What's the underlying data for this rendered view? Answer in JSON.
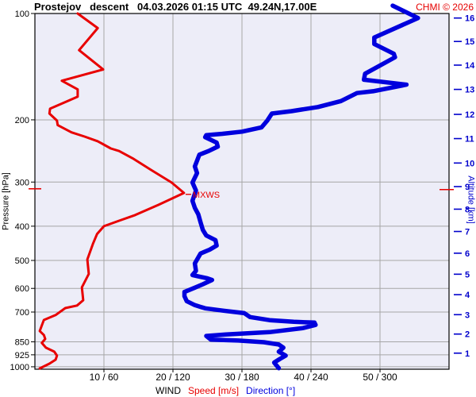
{
  "header": {
    "title": "Prostejov   descent   04.03.2026 01:15 UTC  49.24N,17.00E",
    "copyright": "CHMI © 2026"
  },
  "legend": {
    "wind": "WIND",
    "speed": "Speed [m/s]",
    "direction": "Direction [°]"
  },
  "colors": {
    "speed_curve": "#e80000",
    "direction_curve": "#0000dd",
    "altitude_text": "#0000cc",
    "grid": "#a6a6a6",
    "plot_background": "#ededf8",
    "axis": "#000000",
    "copyright_text": "#e60000"
  },
  "chart_data": {
    "type": "line",
    "title": "Prostejov descent 04.03.2026 01:15 UTC 49.24N,17.00E",
    "y_axis_left": {
      "label": "Pressure [hPa]",
      "scale": "log",
      "range": [
        100,
        1016
      ],
      "ticks": [
        100,
        200,
        300,
        400,
        500,
        600,
        700,
        850,
        925,
        1000
      ]
    },
    "y_axis_right": {
      "label": "Altitude [km]",
      "ticks": [
        {
          "km": 16,
          "p": 103
        },
        {
          "km": 15,
          "p": 120
        },
        {
          "km": 14,
          "p": 140
        },
        {
          "km": 13,
          "p": 164
        },
        {
          "km": 12,
          "p": 193
        },
        {
          "km": 11,
          "p": 226
        },
        {
          "km": 10,
          "p": 265
        },
        {
          "km": 9,
          "p": 309
        },
        {
          "km": 8,
          "p": 358
        },
        {
          "km": 7,
          "p": 414
        },
        {
          "km": 6,
          "p": 477
        },
        {
          "km": 5,
          "p": 547
        },
        {
          "km": 4,
          "p": 625
        },
        {
          "km": 3,
          "p": 712
        },
        {
          "km": 2,
          "p": 808
        },
        {
          "km": 1,
          "p": 915
        }
      ]
    },
    "x_axis": {
      "label": "WIND  Speed [m/s]  Direction [°]",
      "speed_range": [
        0,
        60
      ],
      "direction_range": [
        0,
        360
      ],
      "ticks": [
        {
          "speed": 10,
          "dir": 60,
          "label": "10 / 60"
        },
        {
          "speed": 20,
          "dir": 120,
          "label": "20 / 120"
        },
        {
          "speed": 30,
          "dir": 180,
          "label": "30 / 180"
        },
        {
          "speed": 40,
          "dir": 240,
          "label": "40 / 240"
        },
        {
          "speed": 50,
          "dir": 300,
          "label": "50 / 300"
        }
      ]
    },
    "annotations": {
      "mxws": {
        "label": "MXWS",
        "pressure": 320,
        "speed": 21.6
      }
    },
    "series": [
      {
        "name": "Speed [m/s]",
        "unit": "m/s",
        "color": "#e80000",
        "width": 3,
        "points_value_pressure": [
          [
            0.7,
            1011
          ],
          [
            2.1,
            980
          ],
          [
            3.0,
            955
          ],
          [
            3.2,
            930
          ],
          [
            2.8,
            906
          ],
          [
            1.6,
            883
          ],
          [
            1.0,
            856
          ],
          [
            1.5,
            834
          ],
          [
            1.3,
            813
          ],
          [
            0.7,
            792
          ],
          [
            1.0,
            764
          ],
          [
            1.3,
            737
          ],
          [
            3.0,
            714
          ],
          [
            4.4,
            682
          ],
          [
            6.1,
            671
          ],
          [
            7.0,
            648
          ],
          [
            6.8,
            596
          ],
          [
            7.8,
            546
          ],
          [
            7.6,
            497
          ],
          [
            8.4,
            449
          ],
          [
            9.0,
            421
          ],
          [
            10.0,
            400
          ],
          [
            12.2,
            386
          ],
          [
            14.5,
            372
          ],
          [
            15.2,
            367
          ],
          [
            17.9,
            348
          ],
          [
            21.6,
            322
          ],
          [
            19.8,
            301
          ],
          [
            16.8,
            277
          ],
          [
            14.3,
            258
          ],
          [
            12.2,
            245
          ],
          [
            11.0,
            241
          ],
          [
            9.1,
            230
          ],
          [
            7.2,
            223
          ],
          [
            5.3,
            217
          ],
          [
            3.3,
            207
          ],
          [
            3.2,
            201
          ],
          [
            2.1,
            192
          ],
          [
            2.2,
            186
          ],
          [
            6.2,
            172
          ],
          [
            6.2,
            164
          ],
          [
            3.9,
            155
          ],
          [
            9.9,
            144
          ],
          [
            6.4,
            127
          ],
          [
            9.1,
            110
          ],
          [
            6.2,
            100
          ]
        ]
      },
      {
        "name": "Direction [°]",
        "unit": "°",
        "color": "#0000dd",
        "width": 5.5,
        "points_value_pressure": [
          [
            212,
            1009
          ],
          [
            208,
            973
          ],
          [
            213,
            950
          ],
          [
            218,
            930
          ],
          [
            212,
            906
          ],
          [
            216,
            883
          ],
          [
            212,
            865
          ],
          [
            199,
            852
          ],
          [
            177,
            843
          ],
          [
            153,
            838
          ],
          [
            149,
            818
          ],
          [
            166,
            810
          ],
          [
            204,
            798
          ],
          [
            233,
            777
          ],
          [
            244,
            761
          ],
          [
            243,
            750
          ],
          [
            225,
            746
          ],
          [
            204,
            738
          ],
          [
            187,
            723
          ],
          [
            182,
            705
          ],
          [
            164,
            694
          ],
          [
            148,
            683
          ],
          [
            139,
            669
          ],
          [
            132,
            652
          ],
          [
            130,
            631
          ],
          [
            130,
            614
          ],
          [
            139,
            597
          ],
          [
            146,
            584
          ],
          [
            154,
            568
          ],
          [
            150,
            562
          ],
          [
            137,
            550
          ],
          [
            140,
            535
          ],
          [
            139,
            510
          ],
          [
            144,
            478
          ],
          [
            152,
            466
          ],
          [
            158,
            454
          ],
          [
            157,
            438
          ],
          [
            149,
            425
          ],
          [
            146,
            410
          ],
          [
            144,
            390
          ],
          [
            142,
            370
          ],
          [
            139,
            355
          ],
          [
            137,
            339
          ],
          [
            140,
            317
          ],
          [
            137,
            301
          ],
          [
            141,
            283
          ],
          [
            139,
            271
          ],
          [
            141,
            261
          ],
          [
            143,
            251
          ],
          [
            151,
            245
          ],
          [
            159,
            238
          ],
          [
            158,
            232
          ],
          [
            148,
            224
          ],
          [
            149,
            221
          ],
          [
            163,
            219
          ],
          [
            180,
            216
          ],
          [
            197,
            210
          ],
          [
            202,
            201
          ],
          [
            206,
            192
          ],
          [
            223,
            189
          ],
          [
            246,
            184
          ],
          [
            266,
            177
          ],
          [
            280,
            168
          ],
          [
            294,
            166
          ],
          [
            323,
            159
          ],
          [
            286,
            154
          ],
          [
            287,
            148
          ],
          [
            313,
            133
          ],
          [
            312,
            130
          ],
          [
            295,
            122
          ],
          [
            295,
            117
          ],
          [
            333,
            103
          ],
          [
            311,
            95
          ]
        ]
      }
    ]
  }
}
